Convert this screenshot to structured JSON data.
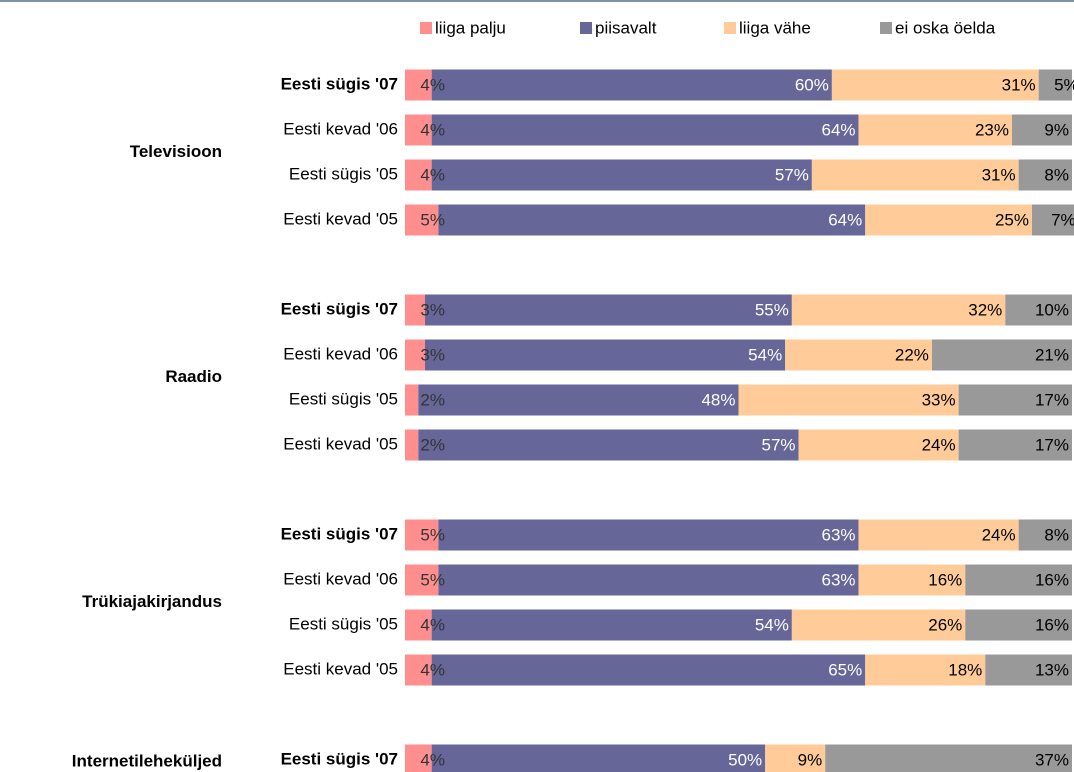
{
  "chart_data": {
    "type": "stacked-bar-horizontal",
    "groups": [
      {
        "label": "Televisioon",
        "categories": [
          "Eesti sügis '07",
          "Eesti kevad '06",
          "Eesti sügis '05",
          "Eesti kevad '05"
        ]
      },
      {
        "label": "Raadio",
        "categories": [
          "Eesti sügis '07",
          "Eesti kevad '06",
          "Eesti sügis '05",
          "Eesti kevad '05"
        ]
      },
      {
        "label": "Trükiajakirjandus",
        "categories": [
          "Eesti sügis '07",
          "Eesti kevad '06",
          "Eesti sügis '05",
          "Eesti kevad '05"
        ]
      },
      {
        "label": "Internetileheküljed",
        "categories": [
          "Eesti sügis '07"
        ]
      }
    ],
    "xlim": [
      0,
      100
    ],
    "legend": "top",
    "series": [
      {
        "name": "liiga palju",
        "color": "#ff8f8f",
        "label_color": "#333333",
        "values": [
          4,
          4,
          4,
          5,
          3,
          3,
          2,
          2,
          5,
          5,
          4,
          4,
          4
        ],
        "value_labels": [
          "4%",
          "4%",
          "4%",
          "5%",
          "3%",
          "3%",
          "2%",
          "2%",
          "5%",
          "5%",
          "4%",
          "4%",
          "4%"
        ]
      },
      {
        "name": "piisavalt",
        "color": "#666699",
        "label_color": "#ffffff",
        "values": [
          60,
          64,
          57,
          64,
          55,
          54,
          48,
          57,
          63,
          63,
          54,
          65,
          50
        ],
        "value_labels": [
          "60%",
          "64%",
          "57%",
          "64%",
          "55%",
          "54%",
          "48%",
          "57%",
          "63%",
          "63%",
          "54%",
          "65%",
          "50%"
        ]
      },
      {
        "name": "liiga vähe",
        "color": "#ffcc99",
        "label_color": "#000000",
        "values": [
          31,
          23,
          31,
          25,
          32,
          22,
          33,
          24,
          24,
          16,
          26,
          18,
          9
        ],
        "value_labels": [
          "31%",
          "23%",
          "31%",
          "25%",
          "32%",
          "22%",
          "33%",
          "24%",
          "24%",
          "16%",
          "26%",
          "18%",
          "9%"
        ]
      },
      {
        "name": "ei oska öelda",
        "color": "#999999",
        "label_color": "#000000",
        "values": [
          5,
          9,
          8,
          7,
          10,
          21,
          17,
          17,
          8,
          16,
          16,
          13,
          37
        ],
        "value_labels": [
          "5%",
          "9%",
          "8%",
          "7%",
          "10%",
          "21%",
          "17%",
          "17%",
          "8%",
          "16%",
          "16%",
          "13%",
          "37%"
        ]
      }
    ]
  }
}
